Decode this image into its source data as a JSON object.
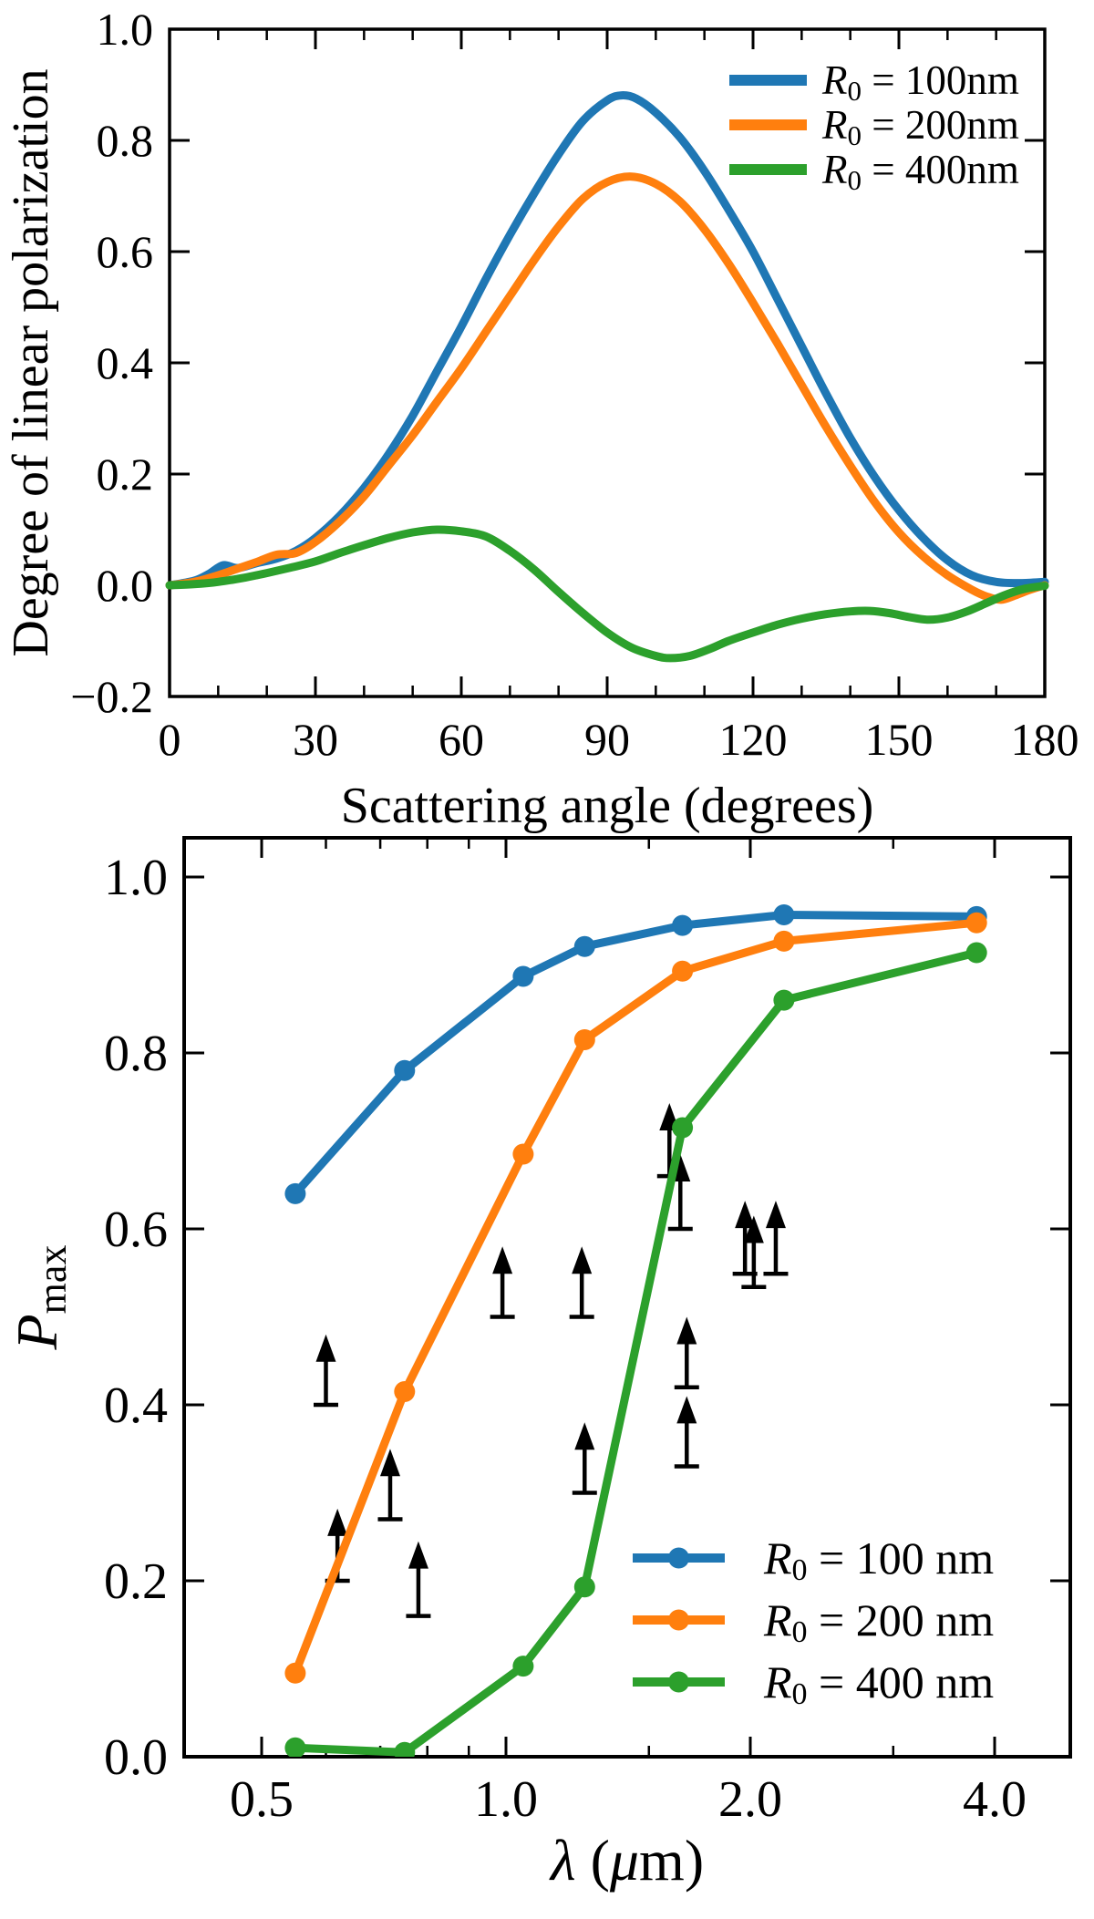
{
  "page": {
    "background": "#ffffff"
  },
  "colors": {
    "series_blue": "#1f77b4",
    "series_orange": "#ff7f0e",
    "series_green": "#2ca02c",
    "axis": "#000000"
  },
  "chart_data": [
    {
      "id": "polarization-vs-scattering-angle",
      "type": "line",
      "title": "",
      "xlabel": "Scattering angle (degrees)",
      "ylabel": "Degree of linear polarization",
      "xlim": [
        0,
        180
      ],
      "ylim": [
        -0.2,
        1.0
      ],
      "grid": false,
      "legend_position": "upper right",
      "x_major_ticks": {
        "values": [
          0,
          30,
          60,
          90,
          120,
          150,
          180
        ],
        "labels": [
          "0",
          "30",
          "60",
          "90",
          "120",
          "150",
          "180"
        ]
      },
      "x_minor_tick_step": 10,
      "y_major_ticks": {
        "values": [
          -0.2,
          0.0,
          0.2,
          0.4,
          0.6,
          0.8,
          1.0
        ],
        "labels": [
          "−0.2",
          "0.0",
          "0.2",
          "0.4",
          "0.6",
          "0.8",
          "1.0"
        ]
      },
      "series": [
        {
          "name": "R0 = 100nm",
          "color": "#1f77b4",
          "label_parts": [
            {
              "t": "R",
              "i": 1
            },
            {
              "t": "0",
              "sub": 1
            },
            {
              "t": " = 100nm"
            }
          ],
          "points": [
            [
              0,
              0.0
            ],
            [
              5,
              0.008
            ],
            [
              8,
              0.02
            ],
            [
              11,
              0.036
            ],
            [
              14,
              0.031
            ],
            [
              18,
              0.04
            ],
            [
              22,
              0.048
            ],
            [
              26,
              0.062
            ],
            [
              30,
              0.085
            ],
            [
              35,
              0.125
            ],
            [
              40,
              0.175
            ],
            [
              45,
              0.235
            ],
            [
              50,
              0.305
            ],
            [
              55,
              0.385
            ],
            [
              60,
              0.465
            ],
            [
              65,
              0.55
            ],
            [
              70,
              0.63
            ],
            [
              75,
              0.705
            ],
            [
              80,
              0.775
            ],
            [
              85,
              0.835
            ],
            [
              90,
              0.872
            ],
            [
              93,
              0.881
            ],
            [
              96,
              0.875
            ],
            [
              100,
              0.85
            ],
            [
              105,
              0.805
            ],
            [
              110,
              0.745
            ],
            [
              115,
              0.675
            ],
            [
              120,
              0.6
            ],
            [
              125,
              0.515
            ],
            [
              130,
              0.43
            ],
            [
              135,
              0.345
            ],
            [
              140,
              0.265
            ],
            [
              145,
              0.195
            ],
            [
              150,
              0.135
            ],
            [
              155,
              0.085
            ],
            [
              160,
              0.045
            ],
            [
              165,
              0.018
            ],
            [
              170,
              0.006
            ],
            [
              175,
              0.004
            ],
            [
              180,
              0.006
            ]
          ]
        },
        {
          "name": "R0 = 200nm",
          "color": "#ff7f0e",
          "label_parts": [
            {
              "t": "R",
              "i": 1
            },
            {
              "t": "0",
              "sub": 1
            },
            {
              "t": " = 200nm"
            }
          ],
          "points": [
            [
              0,
              0.0
            ],
            [
              5,
              0.006
            ],
            [
              10,
              0.018
            ],
            [
              14,
              0.03
            ],
            [
              18,
              0.042
            ],
            [
              22,
              0.055
            ],
            [
              26,
              0.058
            ],
            [
              30,
              0.078
            ],
            [
              35,
              0.115
            ],
            [
              40,
              0.16
            ],
            [
              45,
              0.215
            ],
            [
              50,
              0.27
            ],
            [
              55,
              0.33
            ],
            [
              60,
              0.39
            ],
            [
              65,
              0.455
            ],
            [
              70,
              0.52
            ],
            [
              75,
              0.585
            ],
            [
              80,
              0.645
            ],
            [
              85,
              0.695
            ],
            [
              90,
              0.725
            ],
            [
              95,
              0.735
            ],
            [
              100,
              0.722
            ],
            [
              105,
              0.69
            ],
            [
              110,
              0.64
            ],
            [
              115,
              0.578
            ],
            [
              120,
              0.508
            ],
            [
              125,
              0.435
            ],
            [
              130,
              0.36
            ],
            [
              135,
              0.285
            ],
            [
              140,
              0.215
            ],
            [
              145,
              0.15
            ],
            [
              150,
              0.095
            ],
            [
              155,
              0.052
            ],
            [
              160,
              0.018
            ],
            [
              165,
              -0.008
            ],
            [
              168,
              -0.02
            ],
            [
              171,
              -0.026
            ],
            [
              174,
              -0.018
            ],
            [
              177,
              -0.008
            ],
            [
              180,
              0.0
            ]
          ]
        },
        {
          "name": "R0 = 400nm",
          "color": "#2ca02c",
          "label_parts": [
            {
              "t": "R",
              "i": 1
            },
            {
              "t": "0",
              "sub": 1
            },
            {
              "t": " = 400nm"
            }
          ],
          "points": [
            [
              0,
              0.0
            ],
            [
              5,
              0.002
            ],
            [
              10,
              0.006
            ],
            [
              15,
              0.013
            ],
            [
              20,
              0.022
            ],
            [
              25,
              0.032
            ],
            [
              30,
              0.043
            ],
            [
              35,
              0.058
            ],
            [
              40,
              0.072
            ],
            [
              45,
              0.085
            ],
            [
              50,
              0.095
            ],
            [
              55,
              0.1
            ],
            [
              60,
              0.097
            ],
            [
              65,
              0.088
            ],
            [
              70,
              0.062
            ],
            [
              75,
              0.028
            ],
            [
              80,
              -0.012
            ],
            [
              85,
              -0.05
            ],
            [
              90,
              -0.085
            ],
            [
              95,
              -0.112
            ],
            [
              100,
              -0.127
            ],
            [
              103,
              -0.131
            ],
            [
              107,
              -0.127
            ],
            [
              111,
              -0.115
            ],
            [
              115,
              -0.1
            ],
            [
              120,
              -0.085
            ],
            [
              125,
              -0.071
            ],
            [
              130,
              -0.06
            ],
            [
              135,
              -0.052
            ],
            [
              140,
              -0.047
            ],
            [
              144,
              -0.046
            ],
            [
              148,
              -0.05
            ],
            [
              152,
              -0.057
            ],
            [
              156,
              -0.062
            ],
            [
              160,
              -0.058
            ],
            [
              164,
              -0.047
            ],
            [
              168,
              -0.032
            ],
            [
              172,
              -0.017
            ],
            [
              176,
              -0.006
            ],
            [
              180,
              -0.001
            ]
          ]
        }
      ]
    },
    {
      "id": "pmax-vs-wavelength",
      "type": "line-scatter",
      "title": "",
      "xscale": "log",
      "xlabel_parts": [
        {
          "t": "λ",
          "i": 1
        },
        {
          "t": " ("
        },
        {
          "t": "μ",
          "i": 1
        },
        {
          "t": "m)"
        }
      ],
      "ylabel_parts": [
        {
          "t": "P",
          "i": 1
        },
        {
          "t": "max",
          "sub": 1
        }
      ],
      "xlim": [
        0.4,
        4.9
      ],
      "ylim": [
        0,
        1.045
      ],
      "grid": false,
      "legend_position": "lower right",
      "x_major_ticks": {
        "values": [
          0.5,
          1.0,
          2.0,
          4.0
        ],
        "labels": [
          "0.5",
          "1.0",
          "2.0",
          "4.0"
        ]
      },
      "x_minor_ticks": [
        0.6,
        0.7,
        0.8,
        0.9,
        1.5,
        3.0
      ],
      "y_major_ticks": {
        "values": [
          0.0,
          0.2,
          0.4,
          0.6,
          0.8,
          1.0
        ],
        "labels": [
          "0.0",
          "0.2",
          "0.4",
          "0.6",
          "0.8",
          "1.0"
        ]
      },
      "wavelengths_um": [
        0.55,
        0.75,
        1.05,
        1.25,
        1.65,
        2.2,
        3.8
      ],
      "series": [
        {
          "name": "R0 = 100 nm",
          "color": "#1f77b4",
          "label_parts": [
            {
              "t": "R",
              "i": 1
            },
            {
              "t": "0",
              "sub": 1
            },
            {
              "t": " = 100 nm"
            }
          ],
          "values": [
            0.64,
            0.78,
            0.887,
            0.921,
            0.945,
            0.957,
            0.955
          ]
        },
        {
          "name": "R0 = 200 nm",
          "color": "#ff7f0e",
          "label_parts": [
            {
              "t": "R",
              "i": 1
            },
            {
              "t": "0",
              "sub": 1
            },
            {
              "t": " = 200 nm"
            }
          ],
          "values": [
            0.095,
            0.415,
            0.685,
            0.815,
            0.893,
            0.927,
            0.948
          ]
        },
        {
          "name": "R0 = 400 nm",
          "color": "#2ca02c",
          "label_parts": [
            {
              "t": "R",
              "i": 1
            },
            {
              "t": "0",
              "sub": 1
            },
            {
              "t": " = 400 nm"
            }
          ],
          "values": [
            0.01,
            0.005,
            0.103,
            0.193,
            0.715,
            0.86,
            0.914
          ]
        }
      ],
      "lower_limit_arrows": [
        {
          "lambda_um": 0.6,
          "from": 0.4,
          "to": 0.48
        },
        {
          "lambda_um": 0.62,
          "from": 0.2,
          "to": 0.282
        },
        {
          "lambda_um": 0.72,
          "from": 0.27,
          "to": 0.35
        },
        {
          "lambda_um": 0.78,
          "from": 0.16,
          "to": 0.245
        },
        {
          "lambda_um": 0.99,
          "from": 0.5,
          "to": 0.58
        },
        {
          "lambda_um": 1.24,
          "from": 0.5,
          "to": 0.58
        },
        {
          "lambda_um": 1.25,
          "from": 0.3,
          "to": 0.38
        },
        {
          "lambda_um": 1.59,
          "from": 0.66,
          "to": 0.743
        },
        {
          "lambda_um": 1.64,
          "from": 0.6,
          "to": 0.685
        },
        {
          "lambda_um": 1.67,
          "from": 0.33,
          "to": 0.41
        },
        {
          "lambda_um": 1.67,
          "from": 0.42,
          "to": 0.5
        },
        {
          "lambda_um": 1.97,
          "from": 0.549,
          "to": 0.632
        },
        {
          "lambda_um": 2.02,
          "from": 0.534,
          "to": 0.615
        },
        {
          "lambda_um": 2.15,
          "from": 0.549,
          "to": 0.632
        }
      ]
    }
  ]
}
